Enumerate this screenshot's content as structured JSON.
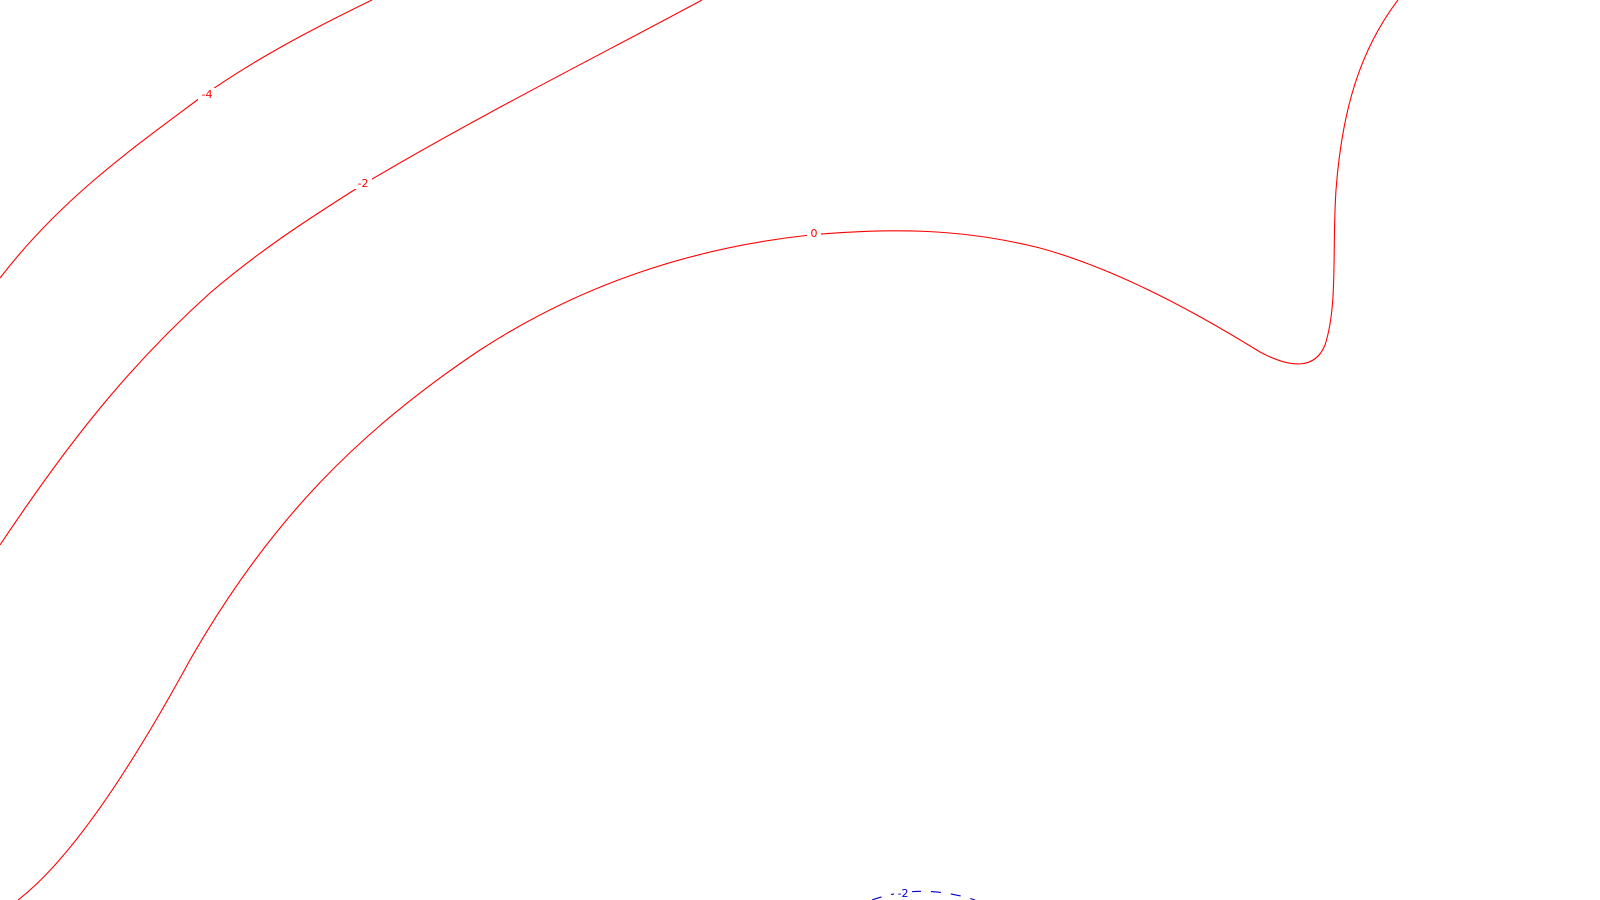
{
  "map": {
    "contours": [
      {
        "id": "contour-minus-4",
        "label": "-4",
        "color": "#ff0000",
        "style": "solid"
      },
      {
        "id": "contour-minus-2",
        "label": "-2",
        "color": "#ff0000",
        "style": "solid"
      },
      {
        "id": "contour-zero",
        "label": "0",
        "color": "#ff0000",
        "style": "solid"
      },
      {
        "id": "contour-minus-2-dashed",
        "label": "-2",
        "color": "#0000cc",
        "style": "dashed"
      }
    ]
  }
}
